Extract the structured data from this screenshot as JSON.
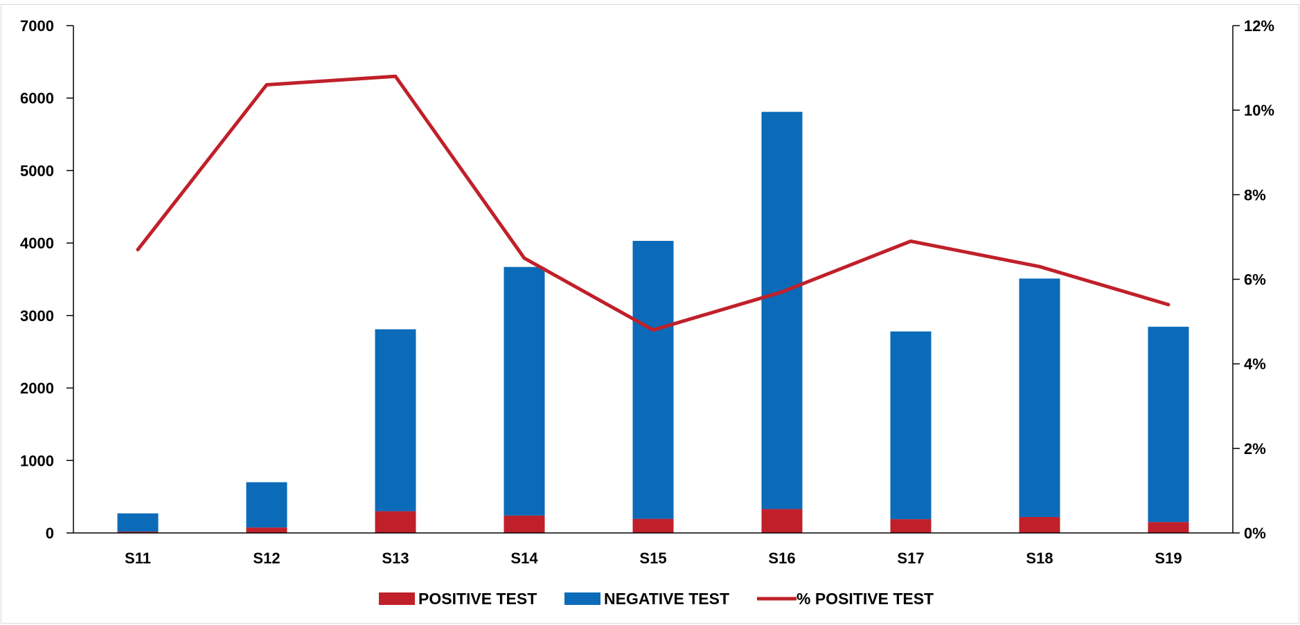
{
  "colors": {
    "positive": "#c0202a",
    "negative": "#0b6bb8",
    "line": "#c0202a",
    "axis": "#000000",
    "frame": "#d9d9d9"
  },
  "chart_data": {
    "type": "bar",
    "stacked": true,
    "categories": [
      "S11",
      "S12",
      "S13",
      "S14",
      "S15",
      "S16",
      "S17",
      "S18",
      "S19"
    ],
    "series": [
      {
        "name": "POSITIVE TEST",
        "type": "bar",
        "axis": "left",
        "values": [
          18,
          75,
          300,
          240,
          195,
          330,
          190,
          220,
          150
        ]
      },
      {
        "name": "NEGATIVE TEST",
        "type": "bar",
        "axis": "left",
        "values": [
          252,
          625,
          2510,
          3430,
          3835,
          5480,
          2590,
          3290,
          2695
        ]
      },
      {
        "name": "% POSITIVE TEST",
        "type": "line",
        "axis": "right",
        "values": [
          6.7,
          10.6,
          10.8,
          6.5,
          4.8,
          5.7,
          6.9,
          6.3,
          5.4
        ]
      }
    ],
    "y_left": {
      "min": 0,
      "max": 7000,
      "ticks": [
        0,
        1000,
        2000,
        3000,
        4000,
        5000,
        6000,
        7000
      ],
      "tick_labels": [
        "0",
        "1000",
        "2000",
        "3000",
        "4000",
        "5000",
        "6000",
        "7000"
      ]
    },
    "y_right": {
      "min": 0,
      "max": 12,
      "ticks": [
        0,
        2,
        4,
        6,
        8,
        10,
        12
      ],
      "tick_labels": [
        "0%",
        "2%",
        "4%",
        "6%",
        "8%",
        "10%",
        "12%"
      ]
    },
    "grid": false,
    "legend_position": "bottom-center"
  }
}
